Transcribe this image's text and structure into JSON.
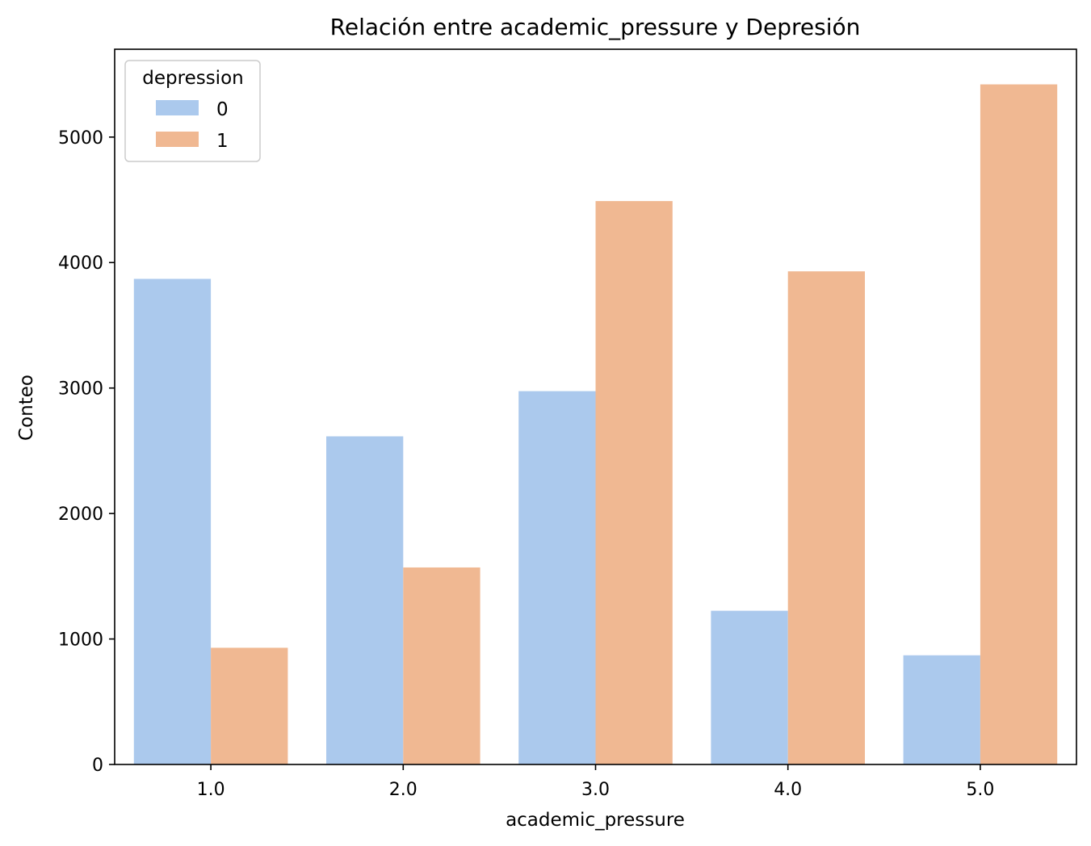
{
  "chart_data": {
    "type": "bar",
    "title": "Relación entre academic_pressure y Depresión",
    "xlabel": "academic_pressure",
    "ylabel": "Conteo",
    "categories": [
      "1.0",
      "2.0",
      "3.0",
      "4.0",
      "5.0"
    ],
    "ylim": [
      0,
      5700
    ],
    "yticks": [
      0,
      1000,
      2000,
      3000,
      4000,
      5000
    ],
    "grid": false,
    "legend": {
      "title": "depression",
      "placement": "top-left"
    },
    "series": [
      {
        "name": "0",
        "color": "#abc9ed",
        "values": [
          3870,
          2615,
          2975,
          1225,
          870
        ]
      },
      {
        "name": "1",
        "color": "#f0b892",
        "values": [
          930,
          1570,
          4490,
          3930,
          5420
        ]
      }
    ]
  }
}
